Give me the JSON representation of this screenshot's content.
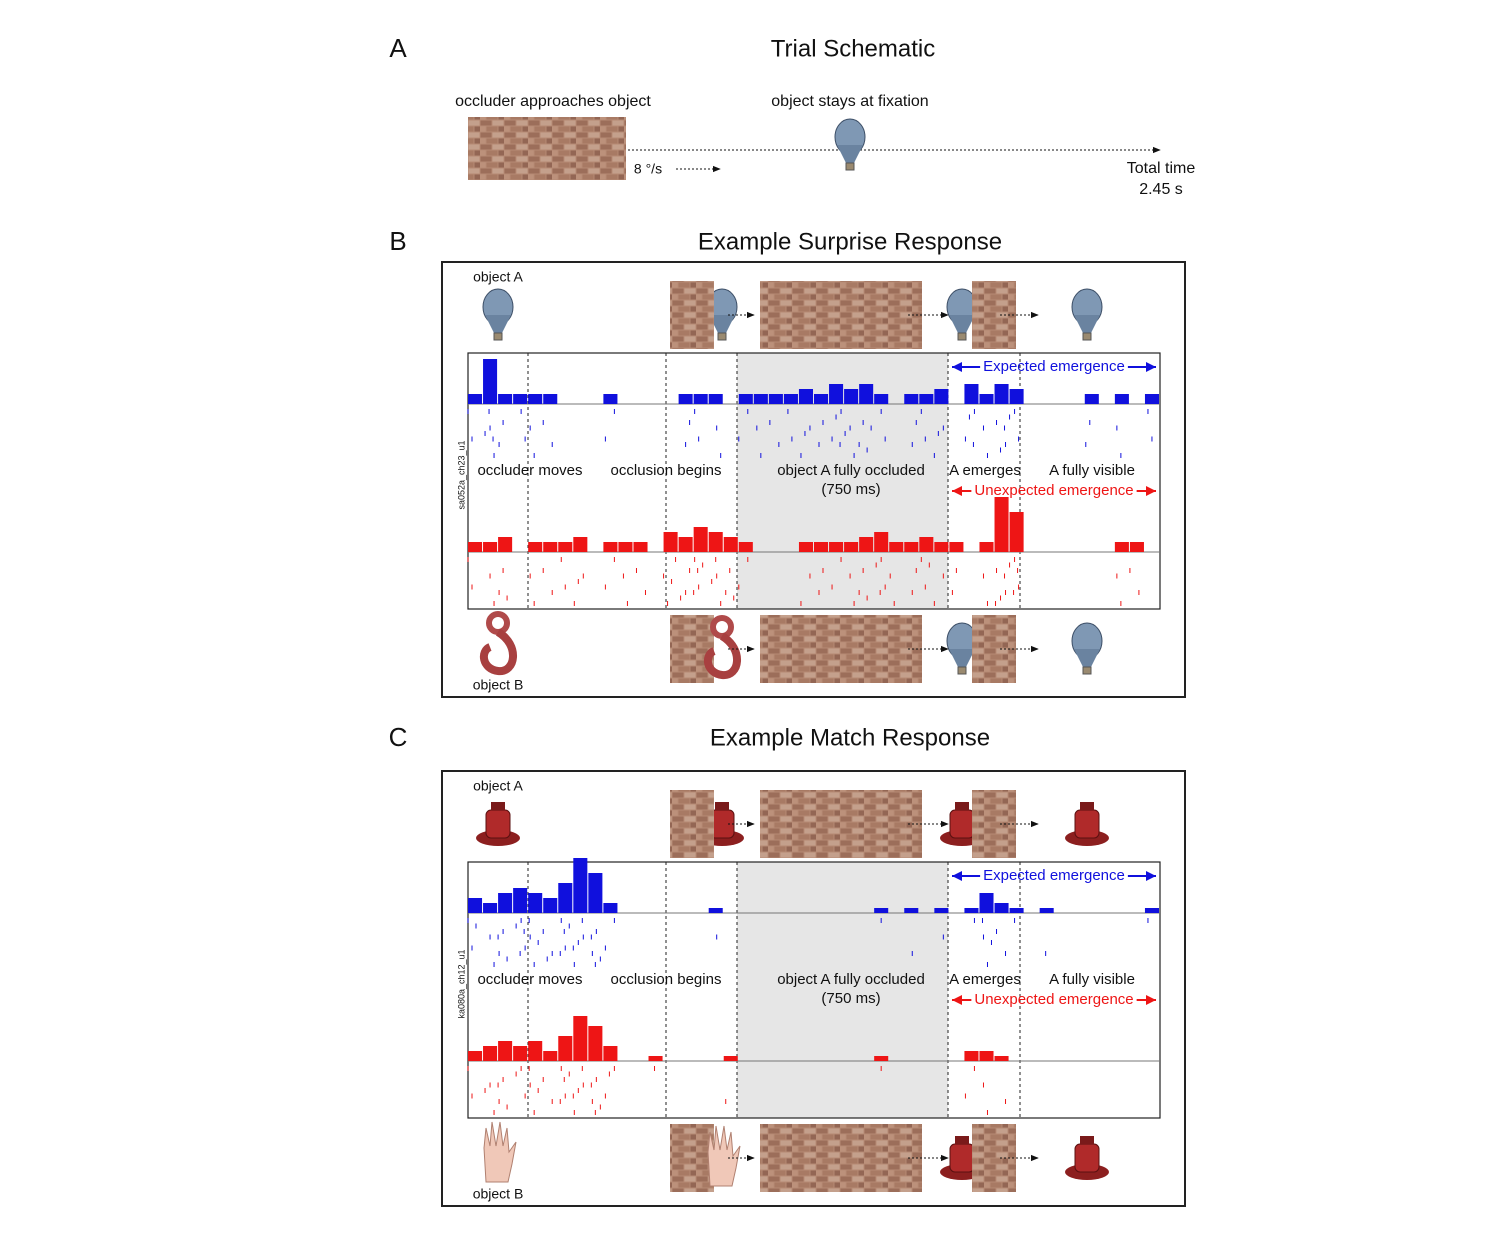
{
  "panel_a": {
    "letter": "A",
    "title": "Trial Schematic",
    "occluder_label": "occluder approaches object",
    "speed": "8 °/s",
    "object_label": "object stays at fixation",
    "total_time": "Total time",
    "duration": "2.45 s"
  },
  "panels": [
    {
      "letter": "B",
      "title": "Example Surprise Response",
      "object_a": "object A",
      "object_b": "object B",
      "unit": "sa052a_ch23_u1",
      "events": [
        "occluder moves",
        "occlusion begins",
        "object A fully occluded",
        "(750 ms)",
        "A emerges",
        "A fully visible"
      ],
      "expected": "Expected emergence",
      "unexpected": "Unexpected emergence",
      "expected_color": "#1010dd",
      "unexpected_color": "#ee1515",
      "expected_counts": [
        2,
        9,
        2,
        2,
        2,
        2,
        0,
        0,
        0,
        2,
        0,
        0,
        0,
        0,
        2,
        2,
        2,
        0,
        2,
        2,
        2,
        2,
        3,
        2,
        4,
        3,
        4,
        2,
        0,
        2,
        2,
        3,
        0,
        4,
        2,
        4,
        3,
        0,
        0,
        0,
        0,
        2,
        0,
        2,
        0,
        2
      ],
      "unexpected_counts": [
        2,
        2,
        3,
        0,
        2,
        2,
        2,
        3,
        0,
        2,
        2,
        2,
        0,
        4,
        3,
        5,
        4,
        3,
        2,
        0,
        0,
        0,
        2,
        2,
        2,
        2,
        3,
        4,
        2,
        2,
        3,
        2,
        2,
        0,
        2,
        11,
        8,
        0,
        0,
        0,
        0,
        0,
        0,
        2,
        2,
        0
      ]
    },
    {
      "letter": "C",
      "title": "Example Match Response",
      "object_a": "object A",
      "object_b": "object B",
      "unit": "ka080a_ch12_u1",
      "events": [
        "occluder moves",
        "occlusion begins",
        "object A fully occluded",
        "(750 ms)",
        "A emerges",
        "A fully visible"
      ],
      "expected": "Expected emergence",
      "unexpected": "Unexpected emergence",
      "expected_color": "#1010dd",
      "unexpected_color": "#ee1515",
      "expected_counts": [
        3,
        2,
        4,
        5,
        4,
        3,
        6,
        11,
        8,
        2,
        0,
        0,
        0,
        0,
        0,
        0,
        1,
        0,
        0,
        0,
        0,
        0,
        0,
        0,
        0,
        0,
        0,
        1,
        0,
        1,
        0,
        1,
        0,
        1,
        4,
        2,
        1,
        0,
        1,
        0,
        0,
        0,
        0,
        0,
        0,
        1
      ],
      "unexpected_counts": [
        2,
        3,
        4,
        3,
        4,
        2,
        5,
        9,
        7,
        3,
        0,
        0,
        1,
        0,
        0,
        0,
        0,
        1,
        0,
        0,
        0,
        0,
        0,
        0,
        0,
        0,
        0,
        1,
        0,
        0,
        0,
        0,
        0,
        2,
        2,
        1,
        0,
        0,
        0,
        0,
        0,
        0,
        0,
        0,
        0,
        0
      ]
    }
  ]
}
